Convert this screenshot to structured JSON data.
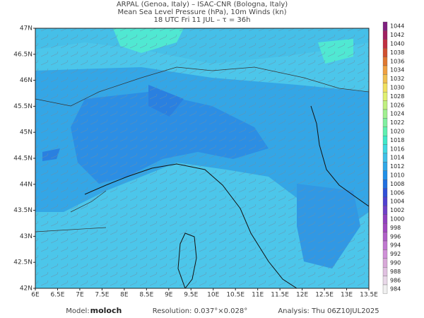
{
  "header": {
    "lines": [
      "ARPAL (Genoa, Italy)  –  ISAC-CNR (Bologna, Italy)",
      "Mean Sea Level Pressure (hPa), 10m Winds (kn)",
      "18 UTC Fri 11 JUL  –  τ = 36h"
    ]
  },
  "map": {
    "lat_labels": [
      "47N",
      "46.5N",
      "46N",
      "45.5N",
      "45N",
      "44.5N",
      "44N",
      "43.5N",
      "43N",
      "42.5N",
      "42N"
    ],
    "lon_labels": [
      "6E",
      "6.5E",
      "7E",
      "7.5E",
      "8E",
      "8.5E",
      "9E",
      "9.5E",
      "10E",
      "10.5E",
      "11E",
      "11.5E",
      "12E",
      "12.5E",
      "13E",
      "13.5E"
    ]
  },
  "colorbar": {
    "levels": [
      1044,
      1042,
      1040,
      1038,
      1036,
      1034,
      1032,
      1030,
      1028,
      1026,
      1024,
      1022,
      1020,
      1018,
      1016,
      1014,
      1012,
      1010,
      1008,
      1006,
      1004,
      1002,
      1000,
      998,
      996,
      994,
      992,
      990,
      988,
      986,
      984
    ],
    "colors": [
      "#802080",
      "#a02060",
      "#c03040",
      "#d05030",
      "#e07830",
      "#f0a040",
      "#f0c050",
      "#f0e060",
      "#e0f070",
      "#c0f080",
      "#a0f090",
      "#80f0a0",
      "#60f0b0",
      "#40e8c8",
      "#40d8e0",
      "#40c0e8",
      "#30a8e8",
      "#2090e8",
      "#2070e0",
      "#3050d8",
      "#5040d0",
      "#7040c8",
      "#9040c0",
      "#a048c0",
      "#b060c8",
      "#c078d0",
      "#d090d8",
      "#d8a8d8",
      "#e0c0e0",
      "#e8d8e8",
      "#f0f0f0"
    ]
  },
  "footer": {
    "model_label": "Model:",
    "model": "moloch",
    "resolution": "Resolution: 0.037°×0.028°",
    "analysis": "Analysis: Thu 06Z10JUL2025"
  }
}
